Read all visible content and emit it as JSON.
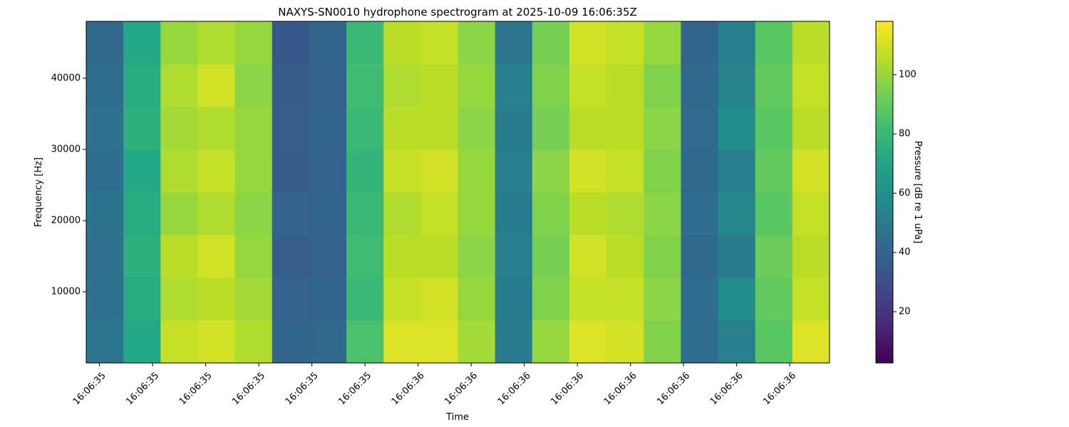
{
  "chart_data": {
    "type": "heatmap",
    "title": "NAXYS-SN0010 hydrophone spectrogram at 2025-10-09 16:06:35Z",
    "xlabel": "Time",
    "ylabel": "Frequency [Hz]",
    "colorbar_label": "Pressure [dB re 1 uPa]",
    "colormap": "viridis",
    "x": [
      35.41,
      35.48,
      35.55,
      35.62,
      35.69,
      35.76,
      35.83,
      35.9,
      35.97,
      36.04,
      36.11,
      36.18,
      36.25,
      36.32,
      36.39,
      36.46,
      36.53,
      36.6,
      36.67,
      36.74
    ],
    "y": [
      3000,
      9000,
      15000,
      21000,
      27000,
      33000,
      39000,
      45000
    ],
    "z": [
      [
        48,
        72,
        108,
        110,
        104,
        40,
        42,
        85,
        112,
        112,
        102,
        50,
        100,
        112,
        110,
        96,
        44,
        52,
        88,
        112
      ],
      [
        46,
        74,
        104,
        106,
        102,
        38,
        40,
        80,
        108,
        110,
        100,
        50,
        96,
        108,
        108,
        98,
        44,
        58,
        90,
        108
      ],
      [
        45,
        76,
        106,
        110,
        100,
        37,
        38,
        82,
        106,
        106,
        98,
        52,
        94,
        110,
        106,
        96,
        42,
        50,
        92,
        106
      ],
      [
        47,
        74,
        100,
        104,
        98,
        38,
        40,
        80,
        104,
        108,
        100,
        50,
        96,
        106,
        104,
        98,
        44,
        56,
        88,
        108
      ],
      [
        44,
        72,
        104,
        108,
        100,
        36,
        38,
        78,
        108,
        110,
        100,
        52,
        98,
        110,
        108,
        96,
        42,
        52,
        90,
        110
      ],
      [
        46,
        76,
        102,
        104,
        100,
        37,
        40,
        80,
        106,
        106,
        98,
        50,
        94,
        106,
        106,
        98,
        43,
        58,
        88,
        106
      ],
      [
        44,
        74,
        104,
        110,
        98,
        36,
        38,
        82,
        104,
        106,
        100,
        52,
        96,
        108,
        106,
        96,
        42,
        54,
        90,
        108
      ],
      [
        42,
        72,
        100,
        104,
        100,
        34,
        40,
        80,
        106,
        108,
        98,
        48,
        94,
        110,
        108,
        100,
        40,
        52,
        88,
        106
      ]
    ],
    "xlim": [
      35.375,
      36.775
    ],
    "xticks": [
      {
        "value": 35.4,
        "label": "16:06:35"
      },
      {
        "value": 35.5,
        "label": "16:06:35"
      },
      {
        "value": 35.6,
        "label": "16:06:35"
      },
      {
        "value": 35.7,
        "label": "16:06:35"
      },
      {
        "value": 35.8,
        "label": "16:06:35"
      },
      {
        "value": 35.9,
        "label": "16:06:35"
      },
      {
        "value": 36.0,
        "label": "16:06:36"
      },
      {
        "value": 36.1,
        "label": "16:06:36"
      },
      {
        "value": 36.2,
        "label": "16:06:36"
      },
      {
        "value": 36.3,
        "label": "16:06:36"
      },
      {
        "value": 36.4,
        "label": "16:06:36"
      },
      {
        "value": 36.5,
        "label": "16:06:36"
      },
      {
        "value": 36.6,
        "label": "16:06:36"
      },
      {
        "value": 36.7,
        "label": "16:06:36"
      }
    ],
    "ylim": [
      0,
      48000
    ],
    "yticks": [
      10000,
      20000,
      30000,
      40000
    ],
    "clim": [
      2.7,
      118
    ],
    "cticks": [
      20,
      40,
      60,
      80,
      100
    ]
  }
}
